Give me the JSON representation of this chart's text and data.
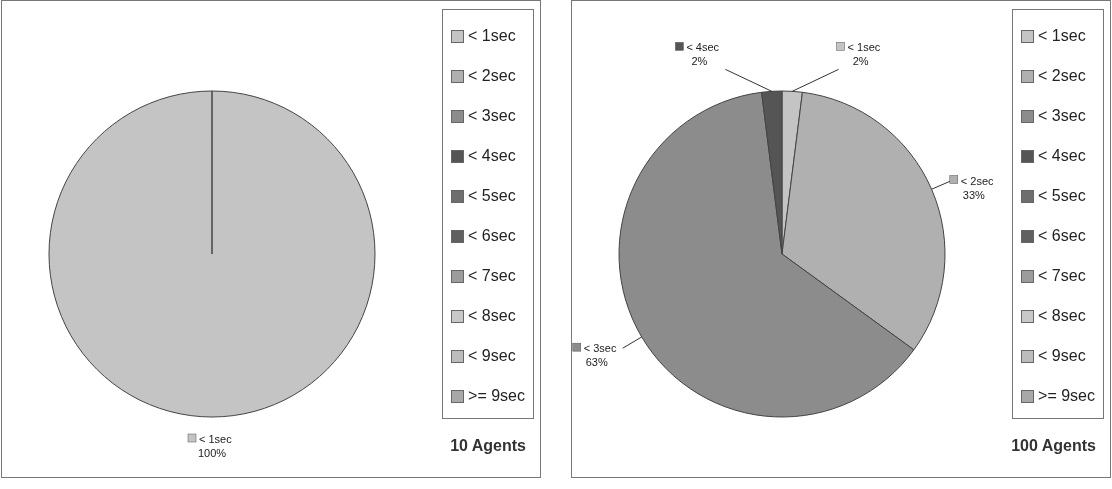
{
  "chart_data": [
    {
      "type": "pie",
      "title": "10 Agents",
      "categories": [
        "< 1sec",
        "< 2sec",
        "< 3sec",
        "< 4sec",
        "< 5sec",
        "< 6sec",
        "< 7sec",
        "< 8sec",
        "< 9sec",
        ">= 9sec"
      ],
      "values": [
        100,
        0,
        0,
        0,
        0,
        0,
        0,
        0,
        0,
        0
      ],
      "value_labels": [
        "100%",
        null,
        null,
        null,
        null,
        null,
        null,
        null,
        null,
        null
      ],
      "colors": [
        "#c4c4c4",
        "#b0b0b0",
        "#8c8c8c",
        "#555555",
        "#6e6e6e",
        "#606060",
        "#9c9c9c",
        "#c8c8c8",
        "#bcbcbc",
        "#a8a8a8"
      ],
      "legend": "right"
    },
    {
      "type": "pie",
      "title": "100 Agents",
      "categories": [
        "< 1sec",
        "< 2sec",
        "< 3sec",
        "< 4sec",
        "< 5sec",
        "< 6sec",
        "< 7sec",
        "< 8sec",
        "< 9sec",
        ">= 9sec"
      ],
      "values": [
        2,
        33,
        63,
        2,
        0,
        0,
        0,
        0,
        0,
        0
      ],
      "value_labels": [
        "2%",
        "33%",
        "63%",
        "2%",
        null,
        null,
        null,
        null,
        null,
        null
      ],
      "colors": [
        "#c4c4c4",
        "#b0b0b0",
        "#8c8c8c",
        "#555555",
        "#6e6e6e",
        "#606060",
        "#9c9c9c",
        "#c8c8c8",
        "#bcbcbc",
        "#a8a8a8"
      ],
      "legend": "right"
    }
  ]
}
